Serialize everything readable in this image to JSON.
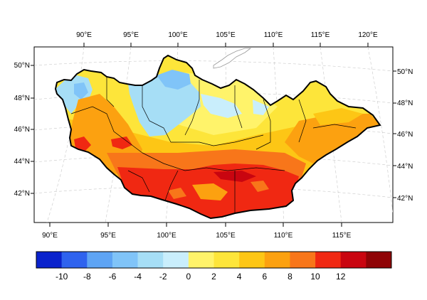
{
  "map": {
    "region": "Mongolia",
    "top_lon_labels": [
      "90°E",
      "95°E",
      "100°E",
      "105°E",
      "110°E",
      "115°E",
      "120°E"
    ],
    "bottom_lon_labels": [
      "90°E",
      "95°E",
      "100°E",
      "105°E",
      "110°E",
      "115°E"
    ],
    "left_lat_labels": [
      "50°N",
      "48°N",
      "46°N",
      "44°N",
      "42°N"
    ],
    "right_lat_labels": [
      "50°N",
      "48°N",
      "46°N",
      "44°N",
      "42°N"
    ],
    "gridlines": true,
    "province_borders": true
  },
  "colorbar": {
    "labels": [
      "-10",
      "-8",
      "-6",
      "-4",
      "-2",
      "0",
      "2",
      "4",
      "6",
      "8",
      "10",
      "12"
    ],
    "colors": [
      "#0a22cc",
      "#2f63ee",
      "#5ea4f4",
      "#80c4f8",
      "#a6def6",
      "#c9eefc",
      "#fff36a",
      "#fde53a",
      "#fdc615",
      "#fca110",
      "#f8761a",
      "#f02812",
      "#c90510",
      "#8f0306"
    ]
  },
  "colors": {
    "outline": "#000000",
    "gridline": "#c8c8c8",
    "frame": "#000000"
  }
}
